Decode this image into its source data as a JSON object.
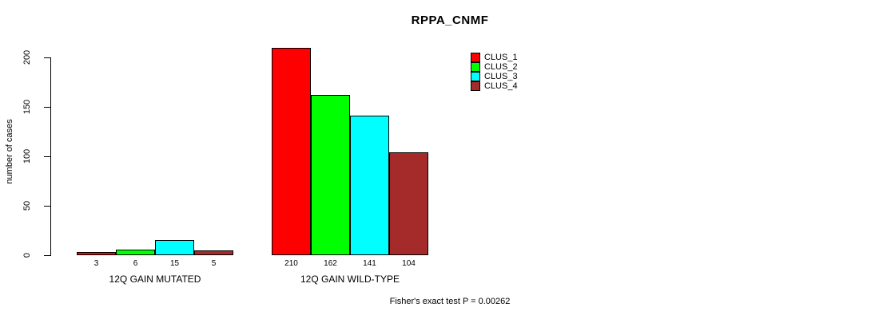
{
  "chart_data": {
    "type": "bar",
    "title": "RPPA_CNMF",
    "ylabel": "number of cases",
    "ylim": [
      0,
      210
    ],
    "yticks": [
      0,
      50,
      100,
      150,
      200
    ],
    "grid": false,
    "legend_position": "top-right",
    "series": [
      {
        "name": "CLUS_1",
        "color": "#ff0000"
      },
      {
        "name": "CLUS_2",
        "color": "#00ff00"
      },
      {
        "name": "CLUS_3",
        "color": "#00ffff"
      },
      {
        "name": "CLUS_4",
        "color": "#a52a2a"
      }
    ],
    "groups": [
      {
        "label": "12Q GAIN MUTATED",
        "values": [
          3,
          6,
          15,
          5
        ]
      },
      {
        "label": "12Q GAIN WILD-TYPE",
        "values": [
          210,
          162,
          141,
          104
        ]
      }
    ],
    "annotation": "Fisher's exact test P = 0.00262"
  }
}
